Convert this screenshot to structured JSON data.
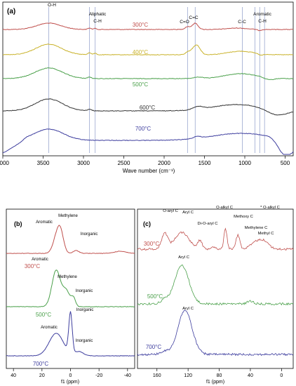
{
  "chart_data": [
    {
      "type": "line",
      "panel": "(a)",
      "xlabel": "Wave number (cm⁻¹)",
      "xlim": [
        4000,
        400
      ],
      "xticks": [
        4000,
        3500,
        3000,
        2500,
        2000,
        1500,
        1000,
        500
      ],
      "yaxis": "none",
      "grid": false,
      "series": [
        {
          "name": "300°C",
          "color": "#c0504d"
        },
        {
          "name": "400°C",
          "color": "#c9b22a"
        },
        {
          "name": "500°C",
          "color": "#4aa04a"
        },
        {
          "name": "600°C",
          "color": "#333333"
        },
        {
          "name": "700°C",
          "color": "#3d3d9e"
        }
      ],
      "annotations": [
        {
          "label": "O-H",
          "x": 3430
        },
        {
          "label": "Aliphatic",
          "x": 2880
        },
        {
          "label": "C-H",
          "x": 2880
        },
        {
          "label": "C=O",
          "x": 1720
        },
        {
          "label": "C=C",
          "x": 1620
        },
        {
          "label": "C-C",
          "x": 1030
        },
        {
          "label": "Aromatic",
          "x": 810
        },
        {
          "label": "C-H",
          "x": 810
        }
      ],
      "reference_lines": [
        3430,
        2925,
        2855,
        1710,
        1615,
        1030,
        875,
        815,
        755
      ]
    },
    {
      "type": "line",
      "panel": "(b)",
      "xlabel": "f1 (ppm)",
      "xlim": [
        45,
        -45
      ],
      "xticks": [
        40,
        20,
        0,
        -20,
        -40
      ],
      "yaxis": "none",
      "grid": false,
      "series": [
        {
          "name": "300°C",
          "color": "#c0504d"
        },
        {
          "name": "500°C",
          "color": "#4aa04a"
        },
        {
          "name": "700°C",
          "color": "#3d3d9e"
        }
      ],
      "annotations": [
        {
          "label": "Methylene",
          "x": 7
        },
        {
          "label": "Aromatic",
          "x": 12
        },
        {
          "label": "Inorganic",
          "x": -6
        },
        {
          "label": "Aromatic",
          "x": 10
        },
        {
          "label": "Methylene",
          "x": 3
        },
        {
          "label": "Inorganic",
          "x": -3
        },
        {
          "label": "Inorganic",
          "x": 0
        },
        {
          "label": "Aromatic",
          "x": 13
        },
        {
          "label": "Inorganic",
          "x": -4
        }
      ]
    },
    {
      "type": "line",
      "panel": "(c)",
      "xlabel": "f1 (ppm)",
      "xlim": [
        185,
        -15
      ],
      "xticks": [
        160,
        120,
        80,
        40,
        0
      ],
      "yaxis": "none",
      "grid": false,
      "series": [
        {
          "name": "300°C",
          "color": "#c0504d"
        },
        {
          "name": "500°C",
          "color": "#4aa04a"
        },
        {
          "name": "700°C",
          "color": "#3d3d9e"
        }
      ],
      "annotations": [
        {
          "label": "O-aryl C",
          "x": 150
        },
        {
          "label": "Aryl C",
          "x": 127
        },
        {
          "label": "Di-O-aryl C",
          "x": 102
        },
        {
          "label": "O-alkyl C",
          "x": 72
        },
        {
          "label": "* O-alkyl  C",
          "x": 8
        },
        {
          "label": "Methoxy C",
          "x": 55
        },
        {
          "label": "Methylene C",
          "x": 33
        },
        {
          "label": "Methyl C",
          "x": 20
        },
        {
          "label": "Aryl C",
          "x": 128
        },
        {
          "label": "Aryl C",
          "x": 124
        }
      ]
    }
  ]
}
